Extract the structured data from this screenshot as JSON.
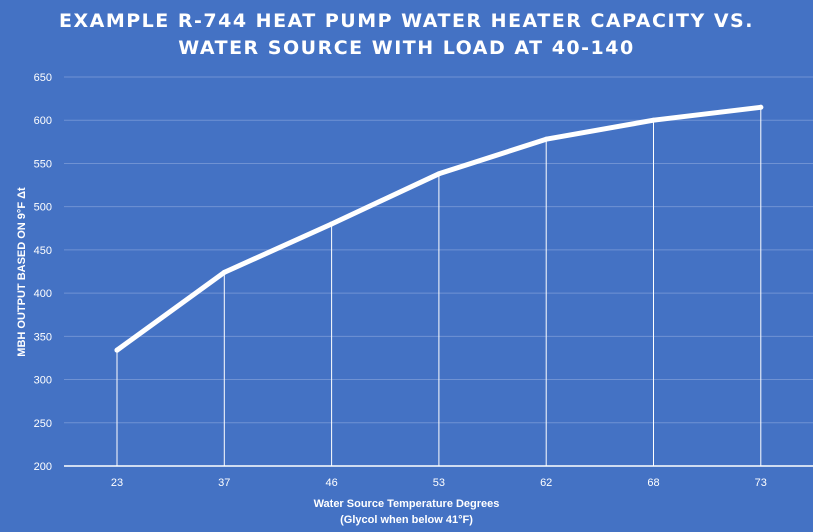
{
  "chart_data": {
    "type": "line",
    "title_lines": [
      "EXAMPLE R-744 HEAT PUMP WATER HEATER CAPACITY VS.",
      "WATER SOURCE WITH LOAD AT 40-140"
    ],
    "ylabel": "MBH OUTPUT BASED ON 9°F Δt",
    "xlabel_lines": [
      "Water Source Temperature Degrees",
      "(Glycol when below 41°F)"
    ],
    "categories": [
      "23",
      "37",
      "46",
      "53",
      "62",
      "68",
      "73"
    ],
    "values": [
      334,
      424,
      480,
      538,
      578,
      600,
      615
    ],
    "ylim": [
      200,
      650
    ],
    "yticks": [
      200,
      250,
      300,
      350,
      400,
      450,
      500,
      550,
      600,
      650
    ],
    "grid": true,
    "drop_lines": true,
    "legend": "none",
    "colors": {
      "background": "#4472c4",
      "line": "#ffffff",
      "grid": "#6f92d3",
      "text": "#ffffff"
    }
  }
}
